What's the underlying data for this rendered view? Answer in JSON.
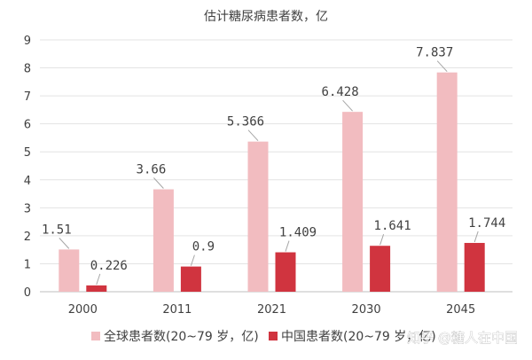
{
  "chart_data": {
    "type": "bar",
    "title": "估计糖尿病患者数，亿",
    "categories": [
      "2000",
      "2011",
      "2021",
      "2030",
      "2045"
    ],
    "series": [
      {
        "name": "全球患者数(20~79 岁，亿)",
        "values": [
          1.51,
          3.66,
          5.366,
          6.428,
          7.837
        ],
        "labels": [
          "1.51",
          "3.66",
          "5.366",
          "6.428",
          "7.837"
        ],
        "color": "#f2bcc0"
      },
      {
        "name": "中国患者数(20~79 岁，亿)",
        "values": [
          0.226,
          0.9,
          1.409,
          1.641,
          1.744
        ],
        "labels": [
          "0.226",
          "0.9",
          "1.409",
          "1.641",
          "1.744"
        ],
        "color": "#d0343f"
      }
    ],
    "ylim": [
      0,
      9
    ],
    "yticks": [
      0,
      1,
      2,
      3,
      4,
      5,
      6,
      7,
      8,
      9
    ],
    "grid": true,
    "legend": "bottom"
  },
  "watermark": "知乎 @糖人在中国"
}
